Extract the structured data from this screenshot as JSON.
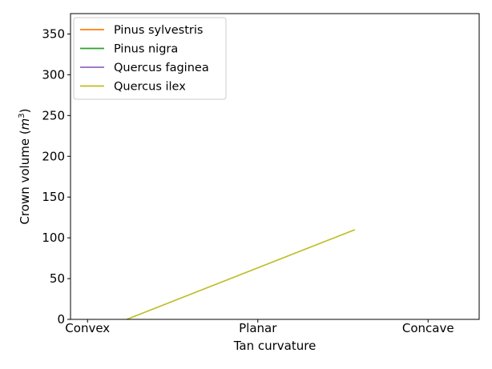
{
  "chart_data": {
    "type": "line",
    "xlabel": "Tan curvature",
    "ylabel": "Crown volume (m³)",
    "ylabel_parts": {
      "prefix": "Crown volume (",
      "var": "m",
      "sup": "3",
      "suffix": ")"
    },
    "categories": [
      "Convex",
      "Planar",
      "Concave"
    ],
    "ylim": [
      0,
      375
    ],
    "yticks": [
      "0",
      "50",
      "100",
      "150",
      "200",
      "250",
      "300",
      "350"
    ],
    "grid": false,
    "legend_position": "top-left",
    "series": [
      {
        "name": "Pinus sylvestris",
        "color": "#ff7f0e",
        "points": []
      },
      {
        "name": "Pinus nigra",
        "color": "#2ca02c",
        "points": []
      },
      {
        "name": "Quercus faginea",
        "color": "#9467bd",
        "points": []
      },
      {
        "name": "Quercus ilex",
        "color": "#bcbd22",
        "points": [
          [
            0.23,
            0
          ],
          [
            1.57,
            110
          ]
        ]
      }
    ]
  }
}
